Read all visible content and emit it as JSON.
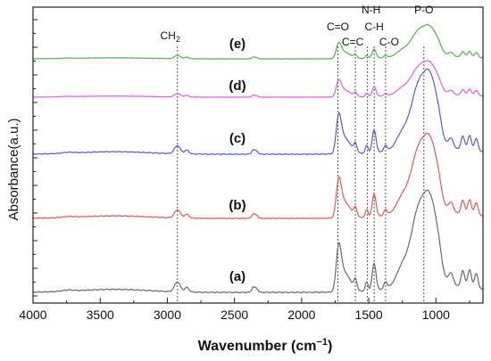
{
  "chart_data": {
    "type": "line",
    "xlabel_main": "Wavenumber (cm",
    "xlabel_sup": "−1",
    "xlabel_close": ")",
    "ylabel": "Absorbance(a.u.)",
    "xlim": [
      4000,
      650
    ],
    "x_ticks": [
      4000,
      3500,
      3000,
      2500,
      2000,
      1500,
      1000
    ],
    "x_tick_labels": [
      "4000",
      "3500",
      "3000",
      "2500",
      "2000",
      "1500",
      "1000"
    ],
    "grid": false,
    "reference_lines": [
      {
        "label": "CH",
        "sub": "2",
        "x": 2925
      },
      {
        "label": "C=O",
        "x": 1730
      },
      {
        "label": "C=C",
        "x": 1600
      },
      {
        "label": "N-H",
        "x": 1510
      },
      {
        "label": "C-H",
        "x": 1460
      },
      {
        "label": "C-O",
        "x": 1375
      },
      {
        "label": "P-O",
        "x": 1090
      }
    ],
    "series": [
      {
        "name": "(e)",
        "color": "#5aaa5a"
      },
      {
        "name": "(d)",
        "color": "#e25ee2"
      },
      {
        "name": "(c)",
        "color": "#5a5ad6"
      },
      {
        "name": "(b)",
        "color": "#e25a5a"
      },
      {
        "name": "(a)",
        "color": "#6a6a6a"
      }
    ]
  }
}
